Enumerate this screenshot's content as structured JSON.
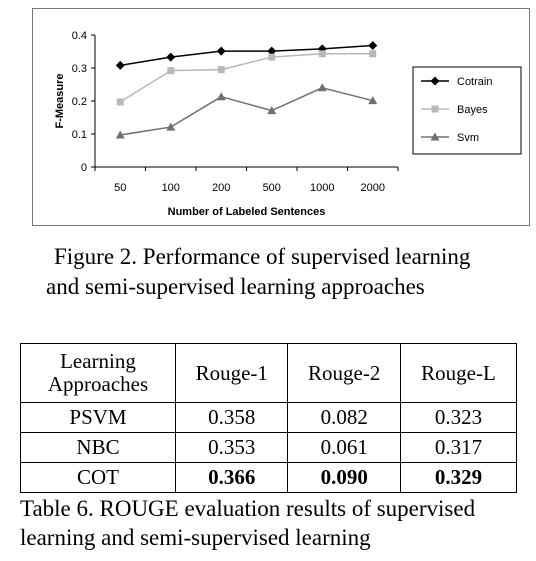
{
  "figure": {
    "caption_line1": "Figure 2. Performance of supervised learning",
    "caption_line2": "and semi-supervised learning approaches"
  },
  "chart_data": {
    "type": "line",
    "categories": [
      "50",
      "100",
      "200",
      "500",
      "1000",
      "2000"
    ],
    "xlabel": "Number of Labeled Sentences",
    "ylabel": "F-Measure",
    "ylim": [
      0,
      0.4
    ],
    "yticks": [
      "0",
      "0.1",
      "0.2",
      "0.3",
      "0.4"
    ],
    "grid": false,
    "legend_position": "right",
    "series": [
      {
        "name": "Cotrain",
        "values": [
          0.308,
          0.333,
          0.351,
          0.351,
          0.358,
          0.368
        ],
        "color": "#000000",
        "marker": "diamond"
      },
      {
        "name": "Bayes",
        "values": [
          0.197,
          0.292,
          0.295,
          0.333,
          0.343,
          0.343
        ],
        "color": "#b8b8b8",
        "marker": "square"
      },
      {
        "name": "Svm",
        "values": [
          0.097,
          0.121,
          0.213,
          0.171,
          0.24,
          0.201
        ],
        "color": "#707070",
        "marker": "triangle"
      }
    ]
  },
  "table": {
    "headers": [
      "Learning Approaches",
      "Rouge-1",
      "Rouge-2",
      "Rouge-L"
    ],
    "rows": [
      {
        "name": "PSVM",
        "values": [
          "0.358",
          "0.082",
          "0.323"
        ],
        "bold": false
      },
      {
        "name": "NBC",
        "values": [
          "0.353",
          "0.061",
          "0.317"
        ],
        "bold": false
      },
      {
        "name": "COT",
        "values": [
          "0.366",
          "0.090",
          "0.329"
        ],
        "bold": true
      }
    ],
    "caption_line1": "Table 6. ROUGE evaluation results of supervised",
    "caption_line2": "learning and semi-supervised learning"
  }
}
